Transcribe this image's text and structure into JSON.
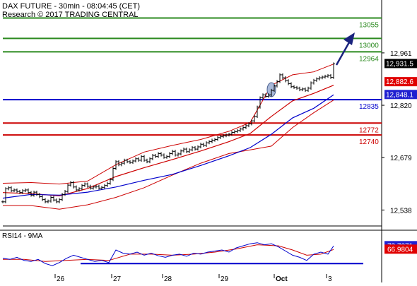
{
  "header": {
    "line1": "DAX FUTURE - 30min - 08:04:45 (CET)",
    "line2": "Research © 2017 TRADING CENTRAL"
  },
  "rsi_panel": {
    "title": "RSI14 - 9MA"
  },
  "colors": {
    "target": "#2b8a1f",
    "support": "#0000cc",
    "resistance": "#cc0000",
    "price_tag_red": "#e00000",
    "price_tag_blue": "#2020d0",
    "price_tag_dark": "#000000",
    "ema_fast": "#cc0000",
    "ema_slow": "#0000cc",
    "arrow": "#1a237e",
    "rsi_line": "#0000cc",
    "rsi_ma": "#cc0000"
  },
  "chart_data": {
    "type": "line",
    "instrument": "DAX FUTURE",
    "timeframe": "30min",
    "x_ticks": [
      "26",
      "27",
      "28",
      "29",
      "Oct",
      "3"
    ],
    "y_ticks": [
      "12,961",
      "12,820",
      "12,679",
      "12,538"
    ],
    "ylim": [
      12495,
      13092
    ],
    "levels": [
      {
        "label": "13055",
        "value": 13055,
        "kind": "target"
      },
      {
        "label": "13000",
        "value": 13000,
        "kind": "target"
      },
      {
        "label": "12964",
        "value": 12964,
        "kind": "target"
      },
      {
        "label": "12835",
        "value": 12835,
        "kind": "support"
      },
      {
        "label": "12772",
        "value": 12772,
        "kind": "resistance"
      },
      {
        "label": "12740",
        "value": 12740,
        "kind": "resistance"
      }
    ],
    "price_tags": [
      {
        "label": "12,931.5",
        "value": 12931.5,
        "kind": "dark"
      },
      {
        "label": "12,882.6",
        "value": 12882.6,
        "kind": "red"
      },
      {
        "label": "12,848.1",
        "value": 12848.1,
        "kind": "blue"
      }
    ],
    "price_series": [
      [
        0,
        12560
      ],
      [
        4,
        12595
      ],
      [
        8,
        12598
      ],
      [
        12,
        12590
      ],
      [
        16,
        12592
      ],
      [
        20,
        12588
      ],
      [
        24,
        12585
      ],
      [
        28,
        12590
      ],
      [
        32,
        12592
      ],
      [
        36,
        12585
      ],
      [
        40,
        12578
      ],
      [
        44,
        12586
      ],
      [
        48,
        12580
      ],
      [
        52,
        12574
      ],
      [
        56,
        12566
      ],
      [
        60,
        12560
      ],
      [
        64,
        12562
      ],
      [
        68,
        12572
      ],
      [
        72,
        12565
      ],
      [
        76,
        12560
      ],
      [
        80,
        12566
      ],
      [
        84,
        12580
      ],
      [
        88,
        12588
      ],
      [
        92,
        12605
      ],
      [
        96,
        12612
      ],
      [
        100,
        12600
      ],
      [
        104,
        12592
      ],
      [
        108,
        12595
      ],
      [
        112,
        12604
      ],
      [
        116,
        12608
      ],
      [
        120,
        12602
      ],
      [
        124,
        12597
      ],
      [
        128,
        12600
      ],
      [
        132,
        12602
      ],
      [
        136,
        12597
      ],
      [
        140,
        12599
      ],
      [
        144,
        12604
      ],
      [
        148,
        12610
      ],
      [
        152,
        12620
      ],
      [
        156,
        12650
      ],
      [
        160,
        12668
      ],
      [
        164,
        12660
      ],
      [
        168,
        12664
      ],
      [
        172,
        12672
      ],
      [
        176,
        12668
      ],
      [
        180,
        12666
      ],
      [
        184,
        12670
      ],
      [
        188,
        12676
      ],
      [
        192,
        12672
      ],
      [
        196,
        12682
      ],
      [
        200,
        12672
      ],
      [
        204,
        12668
      ],
      [
        208,
        12676
      ],
      [
        212,
        12685
      ],
      [
        216,
        12682
      ],
      [
        220,
        12690
      ],
      [
        224,
        12686
      ],
      [
        228,
        12680
      ],
      [
        232,
        12682
      ],
      [
        236,
        12690
      ],
      [
        240,
        12696
      ],
      [
        244,
        12686
      ],
      [
        248,
        12689
      ],
      [
        252,
        12697
      ],
      [
        256,
        12702
      ],
      [
        260,
        12695
      ],
      [
        264,
        12700
      ],
      [
        268,
        12706
      ],
      [
        272,
        12702
      ],
      [
        276,
        12708
      ],
      [
        280,
        12715
      ],
      [
        284,
        12712
      ],
      [
        288,
        12719
      ],
      [
        292,
        12722
      ],
      [
        296,
        12726
      ],
      [
        300,
        12728
      ],
      [
        304,
        12733
      ],
      [
        308,
        12736
      ],
      [
        312,
        12738
      ],
      [
        316,
        12740
      ],
      [
        320,
        12742
      ],
      [
        324,
        12747
      ],
      [
        328,
        12749
      ],
      [
        332,
        12752
      ],
      [
        336,
        12756
      ],
      [
        340,
        12760
      ],
      [
        344,
        12765
      ],
      [
        348,
        12770
      ],
      [
        352,
        12778
      ],
      [
        356,
        12790
      ],
      [
        360,
        12815
      ],
      [
        364,
        12840
      ],
      [
        368,
        12848
      ],
      [
        372,
        12844
      ],
      [
        376,
        12848
      ],
      [
        380,
        12860
      ],
      [
        384,
        12872
      ],
      [
        388,
        12884
      ],
      [
        392,
        12902
      ],
      [
        396,
        12894
      ],
      [
        400,
        12886
      ],
      [
        404,
        12878
      ],
      [
        408,
        12870
      ],
      [
        412,
        12868
      ],
      [
        416,
        12866
      ],
      [
        420,
        12862
      ],
      [
        424,
        12864
      ],
      [
        428,
        12860
      ],
      [
        432,
        12866
      ],
      [
        436,
        12880
      ],
      [
        440,
        12887
      ],
      [
        444,
        12891
      ],
      [
        448,
        12894
      ],
      [
        452,
        12896
      ],
      [
        456,
        12898
      ],
      [
        460,
        12900
      ],
      [
        464,
        12895
      ],
      [
        468,
        12931.5
      ]
    ],
    "ema_fast": [
      [
        0,
        12585
      ],
      [
        40,
        12582
      ],
      [
        80,
        12576
      ],
      [
        120,
        12596
      ],
      [
        160,
        12628
      ],
      [
        200,
        12652
      ],
      [
        240,
        12674
      ],
      [
        280,
        12697
      ],
      [
        320,
        12722
      ],
      [
        350,
        12744
      ],
      [
        380,
        12790
      ],
      [
        410,
        12832
      ],
      [
        440,
        12852
      ],
      [
        468,
        12874
      ]
    ],
    "ema_slow": [
      [
        0,
        12570
      ],
      [
        40,
        12580
      ],
      [
        80,
        12578
      ],
      [
        120,
        12586
      ],
      [
        160,
        12600
      ],
      [
        200,
        12618
      ],
      [
        240,
        12634
      ],
      [
        280,
        12658
      ],
      [
        320,
        12684
      ],
      [
        350,
        12706
      ],
      [
        380,
        12742
      ],
      [
        410,
        12786
      ],
      [
        440,
        12812
      ],
      [
        468,
        12848
      ]
    ],
    "bb_upper": [
      [
        0,
        12610
      ],
      [
        40,
        12612
      ],
      [
        80,
        12608
      ],
      [
        120,
        12616
      ],
      [
        160,
        12660
      ],
      [
        200,
        12694
      ],
      [
        240,
        12712
      ],
      [
        280,
        12728
      ],
      [
        320,
        12750
      ],
      [
        350,
        12774
      ],
      [
        380,
        12874
      ],
      [
        410,
        12902
      ],
      [
        440,
        12910
      ],
      [
        468,
        12931
      ]
    ],
    "bb_lower": [
      [
        0,
        12550
      ],
      [
        40,
        12550
      ],
      [
        80,
        12540
      ],
      [
        120,
        12552
      ],
      [
        160,
        12572
      ],
      [
        200,
        12598
      ],
      [
        240,
        12632
      ],
      [
        280,
        12664
      ],
      [
        320,
        12690
      ],
      [
        350,
        12700
      ],
      [
        380,
        12710
      ],
      [
        410,
        12760
      ],
      [
        440,
        12800
      ],
      [
        468,
        12834
      ]
    ],
    "rsi": {
      "ylim": [
        20,
        85
      ],
      "value_tags": [
        {
          "label": "73.7071",
          "value": 73.7071,
          "kind": "blue"
        },
        {
          "label": "66.9804",
          "value": 66.9804,
          "kind": "red"
        }
      ],
      "level": 40,
      "series": [
        [
          0,
          50
        ],
        [
          10,
          48
        ],
        [
          20,
          52
        ],
        [
          30,
          46
        ],
        [
          40,
          44
        ],
        [
          50,
          48
        ],
        [
          60,
          40
        ],
        [
          70,
          36
        ],
        [
          80,
          42
        ],
        [
          90,
          50
        ],
        [
          100,
          56
        ],
        [
          110,
          52
        ],
        [
          120,
          48
        ],
        [
          130,
          44
        ],
        [
          140,
          46
        ],
        [
          150,
          42
        ],
        [
          160,
          66
        ],
        [
          170,
          60
        ],
        [
          180,
          58
        ],
        [
          190,
          62
        ],
        [
          200,
          56
        ],
        [
          210,
          60
        ],
        [
          220,
          55
        ],
        [
          230,
          52
        ],
        [
          240,
          56
        ],
        [
          250,
          58
        ],
        [
          260,
          54
        ],
        [
          270,
          60
        ],
        [
          280,
          58
        ],
        [
          290,
          62
        ],
        [
          300,
          64
        ],
        [
          310,
          66
        ],
        [
          320,
          62
        ],
        [
          330,
          70
        ],
        [
          340,
          74
        ],
        [
          350,
          78
        ],
        [
          360,
          80
        ],
        [
          370,
          76
        ],
        [
          380,
          78
        ],
        [
          390,
          72
        ],
        [
          400,
          64
        ],
        [
          410,
          56
        ],
        [
          420,
          52
        ],
        [
          430,
          46
        ],
        [
          440,
          58
        ],
        [
          450,
          62
        ],
        [
          460,
          58
        ],
        [
          468,
          73.7
        ]
      ],
      "ma": [
        [
          0,
          48
        ],
        [
          30,
          48
        ],
        [
          60,
          44
        ],
        [
          90,
          46
        ],
        [
          120,
          48
        ],
        [
          150,
          46
        ],
        [
          180,
          58
        ],
        [
          210,
          58
        ],
        [
          240,
          56
        ],
        [
          270,
          58
        ],
        [
          300,
          62
        ],
        [
          330,
          68
        ],
        [
          360,
          76
        ],
        [
          390,
          74
        ],
        [
          410,
          66
        ],
        [
          430,
          56
        ],
        [
          450,
          58
        ],
        [
          468,
          67
        ]
      ]
    }
  }
}
